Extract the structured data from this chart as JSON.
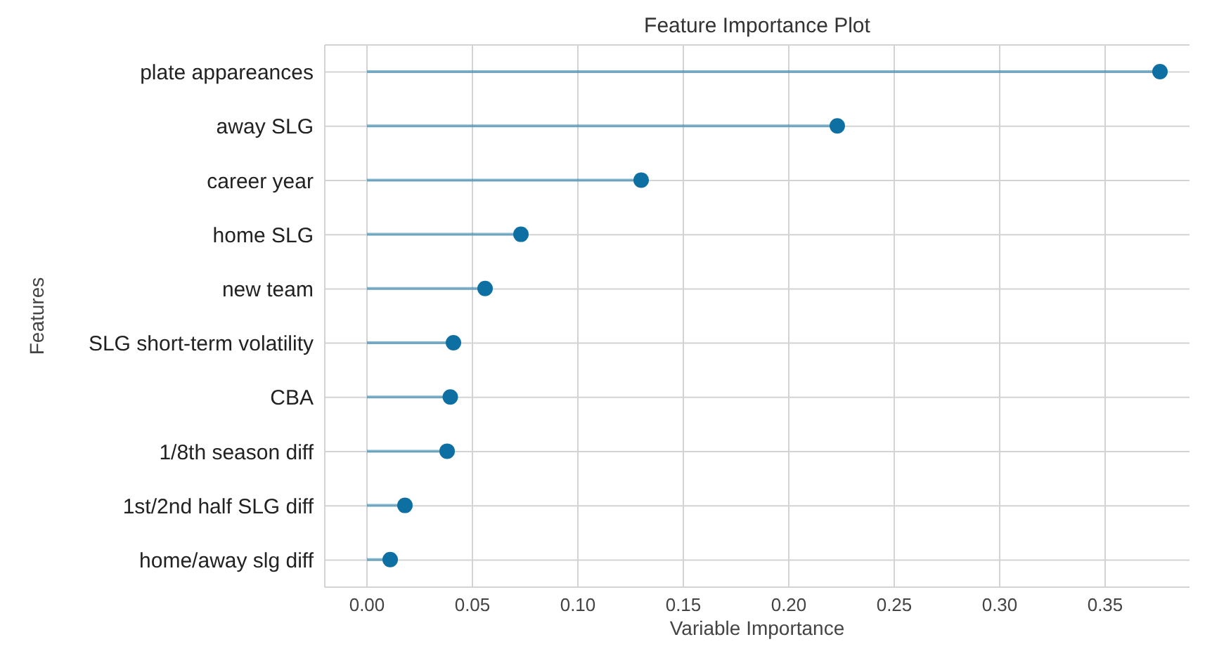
{
  "chart_data": {
    "type": "lollipop",
    "orientation": "horizontal",
    "title": "Feature Importance Plot",
    "xlabel": "Variable Importance",
    "ylabel": "Features",
    "categories": [
      "plate appareances",
      "away SLG",
      "career year",
      "home SLG",
      "new team",
      "SLG short-term volatility",
      "CBA",
      "1/8th season diff",
      "1st/2nd half SLG diff",
      "home/away slg diff"
    ],
    "values": [
      0.376,
      0.223,
      0.13,
      0.073,
      0.056,
      0.041,
      0.0395,
      0.038,
      0.018,
      0.011
    ],
    "color": "#0e6fa3",
    "marker": "circle",
    "xlim": [
      -0.02,
      0.39
    ],
    "xticks": [
      {
        "value": 0,
        "label": "0.00"
      },
      {
        "value": 0.05,
        "label": "0.05"
      },
      {
        "value": 0.1,
        "label": "0.10"
      },
      {
        "value": 0.15,
        "label": "0.15"
      },
      {
        "value": 0.2,
        "label": "0.20"
      },
      {
        "value": 0.25,
        "label": "0.25"
      },
      {
        "value": 0.3,
        "label": "0.30"
      },
      {
        "value": 0.35,
        "label": "0.35"
      }
    ],
    "grid": true,
    "legend": false
  }
}
